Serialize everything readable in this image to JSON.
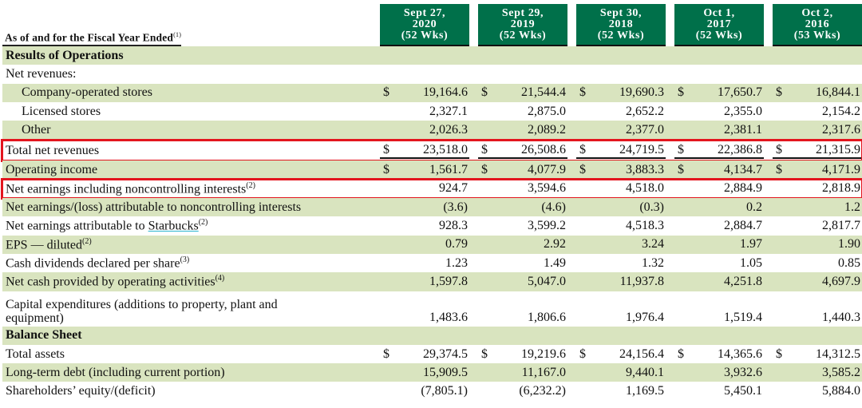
{
  "header": {
    "label": "As of and for the Fiscal Year Ended",
    "label_sup": "(1)",
    "columns": [
      {
        "date": "Sept 27,",
        "year": "2020",
        "weeks": "(52 Wks)"
      },
      {
        "date": "Sept 29,",
        "year": "2019",
        "weeks": "(52 Wks)"
      },
      {
        "date": "Sept 30,",
        "year": "2018",
        "weeks": "(52 Wks)"
      },
      {
        "date": "Oct 1,",
        "year": "2017",
        "weeks": "(52 Wks)"
      },
      {
        "date": "Oct 2,",
        "year": "2016",
        "weeks": "(53 Wks)"
      }
    ]
  },
  "currency_symbol": "$",
  "colors": {
    "header_bg": "#00704a",
    "shade": "#d9e4bf",
    "highlight": "#e3151e"
  },
  "rows": [
    {
      "label": "Results of Operations",
      "bold": true,
      "shade": true,
      "values": []
    },
    {
      "label": "Net revenues:",
      "shade": false,
      "values": []
    },
    {
      "label": "Company-operated stores",
      "indent": true,
      "shade": true,
      "dollar": true,
      "values": [
        "19,164.6",
        "21,544.4",
        "19,690.3",
        "17,650.7",
        "16,844.1"
      ]
    },
    {
      "label": "Licensed stores",
      "indent": true,
      "shade": false,
      "values": [
        "2,327.1",
        "2,875.0",
        "2,652.2",
        "2,355.0",
        "2,154.2"
      ]
    },
    {
      "label": "Other",
      "indent": true,
      "shade": true,
      "values": [
        "2,026.3",
        "2,089.2",
        "2,377.0",
        "2,381.1",
        "2,317.6"
      ]
    },
    {
      "label": "Total net revenues",
      "shade": false,
      "dollar": true,
      "total": true,
      "highlighted": true,
      "values": [
        "23,518.0",
        "26,508.6",
        "24,719.5",
        "22,386.8",
        "21,315.9"
      ]
    },
    {
      "label": "Operating income",
      "shade": true,
      "dollar": true,
      "values": [
        "1,561.7",
        "4,077.9",
        "3,883.3",
        "4,134.7",
        "4,171.9"
      ]
    },
    {
      "label": "Net earnings including noncontrolling interests",
      "sup": "(2)",
      "shade": false,
      "highlighted": true,
      "values": [
        "924.7",
        "3,594.6",
        "4,518.0",
        "2,884.9",
        "2,818.9"
      ]
    },
    {
      "label": "Net earnings/(loss) attributable to noncontrolling interests",
      "shade": true,
      "values": [
        "(3.6)",
        "(4.6)",
        "(0.3)",
        "0.2",
        "1.2"
      ]
    },
    {
      "label": "Net earnings attributable to ",
      "link": "Starbucks",
      "sup": "(2)",
      "shade": false,
      "values": [
        "928.3",
        "3,599.2",
        "4,518.3",
        "2,884.7",
        "2,817.7"
      ]
    },
    {
      "label": "EPS — diluted",
      "sup": "(2)",
      "shade": true,
      "values": [
        "0.79",
        "2.92",
        "3.24",
        "1.97",
        "1.90"
      ]
    },
    {
      "label": "Cash dividends declared per share",
      "sup": "(3)",
      "shade": false,
      "values": [
        "1.23",
        "1.49",
        "1.32",
        "1.05",
        "0.85"
      ]
    },
    {
      "label": "Net cash provided by operating activities",
      "sup": "(4)",
      "shade": true,
      "values": [
        "1,597.8",
        "5,047.0",
        "11,937.8",
        "4,251.8",
        "4,697.9"
      ]
    },
    {
      "label": "Capital expenditures (additions to property, plant and",
      "label2": "equipment)",
      "shade": false,
      "values": [
        "1,483.6",
        "1,806.6",
        "1,976.4",
        "1,519.4",
        "1,440.3"
      ]
    },
    {
      "label": "Balance Sheet",
      "bold": true,
      "shade": true,
      "values": []
    },
    {
      "label": "Total assets",
      "shade": false,
      "dollar": true,
      "values": [
        "29,374.5",
        "19,219.6",
        "24,156.4",
        "14,365.6",
        "14,312.5"
      ]
    },
    {
      "label": "Long-term debt (including current portion)",
      "shade": true,
      "values": [
        "15,909.5",
        "11,167.0",
        "9,440.1",
        "3,932.6",
        "3,585.2"
      ]
    },
    {
      "label": "Shareholders’ equity/(deficit)",
      "shade": false,
      "values": [
        "(7,805.1)",
        "(6,232.2)",
        "1,169.5",
        "5,450.1",
        "5,884.0"
      ]
    }
  ]
}
